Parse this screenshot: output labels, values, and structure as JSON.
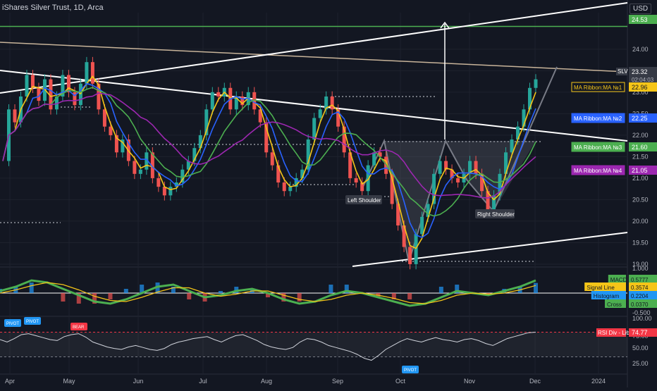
{
  "header": {
    "title": "iShares Silver Trust, 1D, Arca",
    "currency": "USD"
  },
  "colors": {
    "background": "#131722",
    "grid": "#1e222d",
    "up": "#26a69a",
    "down": "#ef5350",
    "ma1": "#f5c518",
    "ma2": "#2962ff",
    "ma3": "#4caf50",
    "ma4": "#9c27b0",
    "neckline": "#787b86",
    "target_line": "#4caf50",
    "sloped_line": "#c8b49a"
  },
  "chart_data": [
    {
      "type": "candlestick",
      "symbol": "SLV",
      "last_price": "23.32",
      "countdown": "02:04:03",
      "x_axis": {
        "ticks": [
          "Apr",
          "May",
          "Jun",
          "Jul",
          "Aug",
          "Sep",
          "Oct",
          "Nov",
          "Dec",
          "2024"
        ]
      },
      "y_axis": {
        "ticks": [
          "19.00",
          "19.50",
          "20.00",
          "20.50",
          "21.00",
          "21.50",
          "22.00",
          "22.50",
          "23.00",
          "23.50",
          "24.00"
        ],
        "range": [
          18.95,
          24.85
        ]
      },
      "price_labels": [
        {
          "label": "",
          "value": "24.53",
          "color": "#4caf50"
        },
        {
          "label": "MA Ribbon:MA №1",
          "value": "22.96",
          "color": "#f5c518"
        },
        {
          "label": "MA Ribbon:MA №2",
          "value": "22.25",
          "color": "#2962ff"
        },
        {
          "label": "MA Ribbon:MA №3",
          "value": "21.60",
          "color": "#4caf50"
        },
        {
          "label": "MA Ribbon:MA №4",
          "value": "21.05",
          "color": "#9c27b0"
        }
      ],
      "annotations": [
        "Left Shoulder",
        "Right Shoulder"
      ],
      "price_path": [
        21.4,
        22.6,
        22.3,
        22.9,
        23.4,
        23.1,
        22.8,
        23.3,
        22.6,
        22.9,
        23.4,
        23.0,
        22.7,
        23.2,
        23.7,
        23.2,
        22.6,
        22.2,
        22.0,
        21.6,
        21.9,
        21.4,
        21.1,
        21.2,
        21.6,
        21.0,
        20.8,
        20.6,
        20.8,
        20.9,
        21.2,
        21.4,
        21.7,
        22.0,
        22.6,
        23.0,
        22.9,
        23.1,
        22.6,
        22.9,
        22.7,
        23.0,
        22.6,
        22.3,
        21.6,
        21.3,
        20.9,
        20.7,
        20.8,
        21.0,
        21.2,
        21.9,
        22.4,
        22.6,
        22.9,
        22.6,
        22.2,
        21.6,
        21.0,
        20.9,
        20.7,
        21.3,
        21.6,
        21.5,
        21.1,
        20.4,
        19.9,
        19.4,
        19.0,
        19.7,
        20.1,
        20.4,
        21.1,
        21.4,
        21.2,
        21.0,
        20.9,
        21.1,
        21.4,
        21.1,
        20.7,
        20.2,
        20.6,
        21.1,
        21.6,
        21.9,
        22.2,
        22.6,
        23.1,
        23.3
      ]
    },
    {
      "type": "line",
      "title": "MACD",
      "y_axis": {
        "ticks": [
          "1.000",
          "-0.500"
        ]
      },
      "series": [
        {
          "name": "MACD",
          "value": "0.5777",
          "color": "#4caf50"
        },
        {
          "name": "Signal Line",
          "value": "0.3574",
          "color": "#f5c518"
        },
        {
          "name": "Histogram",
          "value": "0.2204",
          "color": "#2196f3"
        },
        {
          "name": "Cross",
          "value": "0.0370",
          "color": "#4caf50"
        }
      ],
      "macd_path": [
        0.1,
        0.3,
        0.6,
        0.5,
        0.2,
        -0.1,
        -0.4,
        -0.5,
        -0.3,
        0.0,
        0.3,
        0.4,
        0.1,
        -0.2,
        -0.1,
        0.1,
        0.2,
        0.0,
        -0.3,
        -0.5,
        -0.4,
        -0.1,
        0.1,
        0.0,
        -0.2,
        -0.4,
        -0.6,
        -0.5,
        -0.2,
        0.1,
        0.0,
        -0.1,
        0.1,
        0.3,
        0.6
      ],
      "signal_path": [
        0.0,
        0.15,
        0.35,
        0.5,
        0.4,
        0.15,
        -0.15,
        -0.35,
        -0.4,
        -0.2,
        0.05,
        0.25,
        0.25,
        0.0,
        -0.15,
        -0.05,
        0.1,
        0.1,
        -0.1,
        -0.3,
        -0.4,
        -0.3,
        -0.1,
        0.0,
        -0.1,
        -0.25,
        -0.45,
        -0.5,
        -0.35,
        -0.1,
        0.0,
        -0.05,
        0.0,
        0.15,
        0.36
      ]
    },
    {
      "type": "line",
      "title": "RSI Div - Lib",
      "value": "74.77",
      "y_axis": {
        "ticks": [
          "100.00",
          "75.00",
          "50.00",
          "25.00"
        ],
        "range": [
          0,
          100
        ]
      },
      "labels": [
        {
          "text": "PIVOT",
          "kind": "high"
        },
        {
          "text": "PIVOT",
          "kind": "high"
        },
        {
          "text": "BEAR",
          "kind": "bear"
        },
        {
          "text": "PIVOT",
          "kind": "low"
        }
      ],
      "rsi_path": [
        60,
        55,
        62,
        70,
        72,
        68,
        64,
        60,
        58,
        66,
        70,
        72,
        65,
        55,
        50,
        45,
        42,
        40,
        45,
        48,
        44,
        40,
        38,
        42,
        50,
        55,
        58,
        62,
        64,
        66,
        60,
        55,
        62,
        68,
        70,
        64,
        58,
        50,
        45,
        42,
        40,
        44,
        55,
        62,
        60,
        55,
        48,
        44,
        40,
        36,
        30,
        22,
        18,
        28,
        40,
        48,
        56,
        62,
        58,
        55,
        60,
        64,
        60,
        58,
        55,
        60,
        62,
        58,
        52,
        48,
        55,
        62,
        66,
        70,
        74,
        75
      ]
    }
  ]
}
